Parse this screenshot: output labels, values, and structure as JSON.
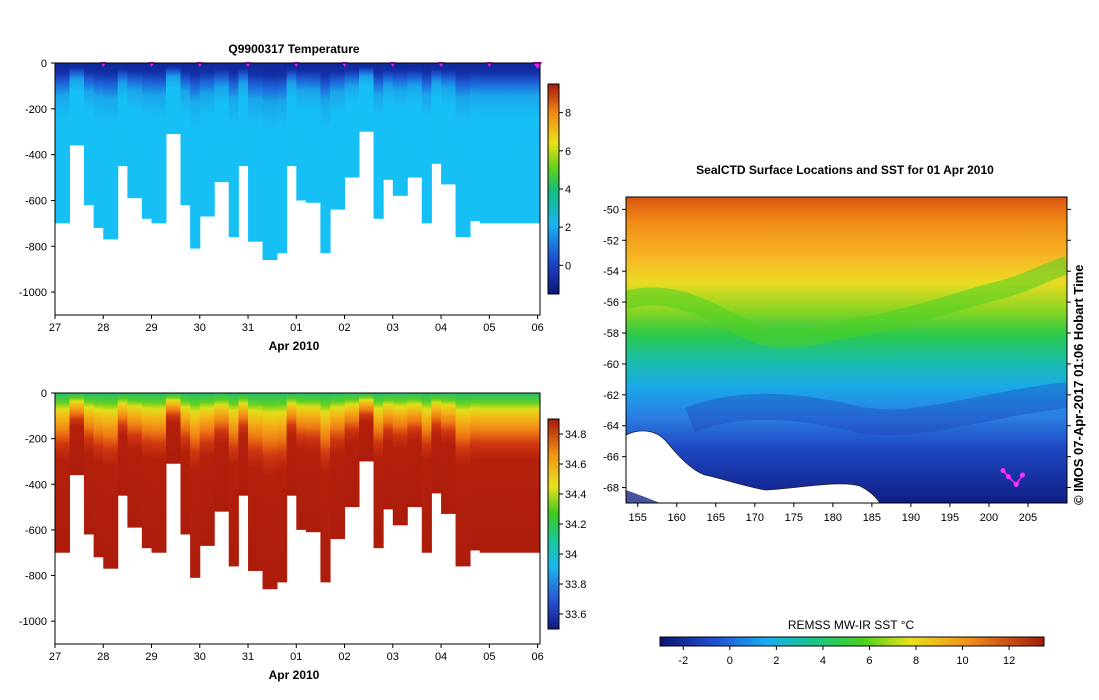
{
  "chart_data": [
    {
      "type": "heatmap",
      "id": "temperature-section",
      "title": "Q9900317  Temperature",
      "xlabel": "Apr 2010",
      "ylabel": "",
      "x_ticks": [
        "27",
        "28",
        "29",
        "30",
        "31",
        "01",
        "02",
        "03",
        "04",
        "05",
        "06"
      ],
      "y_ticks": [
        0,
        -200,
        -400,
        -600,
        -800,
        -1000
      ],
      "ylim": [
        -1100,
        0
      ],
      "colorbar": {
        "range": [
          -1.5,
          9.5
        ],
        "ticks": [
          0,
          2,
          4,
          6,
          8
        ]
      },
      "profile_markers_day": [
        28,
        29,
        30,
        31,
        32,
        33,
        34,
        35,
        36,
        37
      ],
      "profiles": {
        "day_start": [
          27.0,
          27.3,
          27.6,
          27.8,
          28.0,
          28.3,
          28.5,
          28.8,
          29.0,
          29.3,
          29.6,
          29.8,
          30.0,
          30.3,
          30.6,
          30.8,
          31.0,
          31.3,
          31.6,
          31.8,
          32.0,
          32.2,
          32.5,
          32.7,
          33.0,
          33.3,
          33.6,
          33.8,
          34.0,
          34.3,
          34.6,
          34.8,
          35.0,
          35.3,
          35.6,
          35.8,
          36.0
        ],
        "max_depth_m": [
          700,
          360,
          620,
          720,
          770,
          450,
          590,
          680,
          700,
          310,
          620,
          810,
          670,
          520,
          760,
          450,
          780,
          860,
          830,
          450,
          600,
          610,
          830,
          640,
          500,
          300,
          680,
          510,
          580,
          500,
          700,
          440,
          530,
          760,
          690,
          700,
          700
        ]
      }
    },
    {
      "type": "heatmap",
      "id": "salinity-section",
      "title": "",
      "xlabel": "Apr 2010",
      "ylabel": "",
      "x_ticks": [
        "27",
        "28",
        "29",
        "30",
        "31",
        "01",
        "02",
        "03",
        "04",
        "05",
        "06"
      ],
      "y_ticks": [
        0,
        -200,
        -400,
        -600,
        -800,
        -1000
      ],
      "ylim": [
        -1100,
        0
      ],
      "colorbar": {
        "range": [
          33.5,
          34.9
        ],
        "ticks": [
          33.6,
          33.8,
          34,
          34.2,
          34.4,
          34.6,
          34.8
        ]
      }
    },
    {
      "type": "heatmap",
      "id": "sst-map",
      "title": "SealCTD Surface Locations and SST for 01 Apr 2010",
      "xlabel": "",
      "ylabel": "",
      "x_ticks": [
        155,
        160,
        165,
        170,
        175,
        180,
        185,
        190,
        195,
        200,
        205
      ],
      "y_ticks": [
        -50,
        -52,
        -54,
        -56,
        -58,
        -60,
        -62,
        -64,
        -66,
        -68
      ],
      "xlim": [
        153.5,
        210
      ],
      "ylim": [
        -69,
        -49.2
      ],
      "colorbar": {
        "label": "REMSS MW-IR SST °C",
        "range": [
          -3,
          13.5
        ],
        "ticks": [
          -2,
          0,
          2,
          4,
          6,
          8,
          10,
          12
        ]
      },
      "track": [
        [
          201.8,
          -66.9
        ],
        [
          202.5,
          -67.3
        ],
        [
          203.5,
          -67.8
        ],
        [
          204.3,
          -67.2
        ]
      ],
      "credit": "© IMOS 07-Apr-2017 01:06 Hobart Time"
    }
  ]
}
